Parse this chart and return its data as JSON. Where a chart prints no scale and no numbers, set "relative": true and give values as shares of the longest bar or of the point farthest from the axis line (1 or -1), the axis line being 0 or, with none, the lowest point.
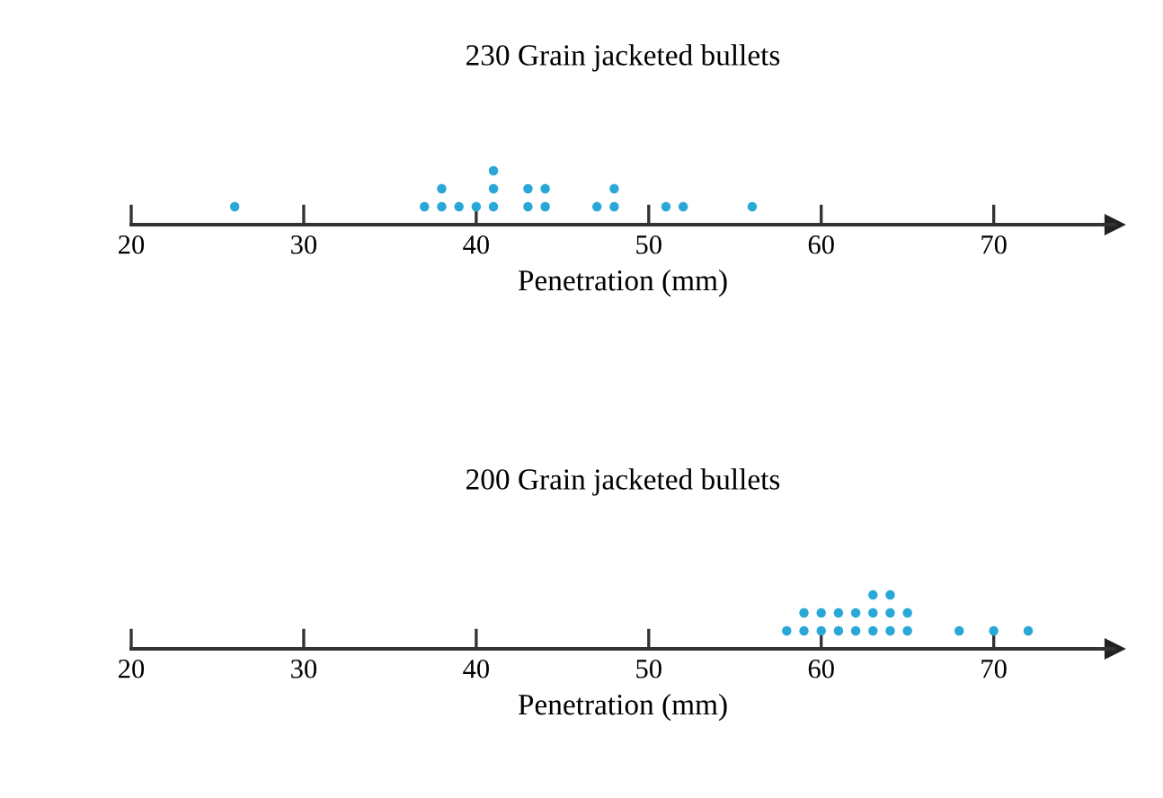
{
  "chart_data": [
    {
      "type": "scatter",
      "title": "230 Grain jacketed bullets",
      "xlabel": "Penetration (mm)",
      "relative": true,
      "marker": "circle",
      "xlim": [
        20,
        77
      ],
      "xticks": [
        20,
        30,
        40,
        50,
        60,
        70
      ],
      "series": [
        {
          "color": "#29a8d8",
          "x": [
            26,
            37,
            38,
            38,
            39,
            40,
            41,
            41,
            41,
            43,
            43,
            44,
            44,
            47,
            48,
            48,
            51,
            52,
            56
          ],
          "values": [
            0.333,
            0.333,
            0.333,
            0.667,
            0.333,
            0.333,
            0.333,
            0.667,
            1,
            0.333,
            0.667,
            0.333,
            0.667,
            0.333,
            0.333,
            0.667,
            0.333,
            0.333,
            0.333
          ]
        }
      ]
    },
    {
      "type": "scatter",
      "title": "200 Grain jacketed bullets",
      "xlabel": "Penetration (mm)",
      "relative": true,
      "marker": "circle",
      "xlim": [
        20,
        77
      ],
      "xticks": [
        20,
        30,
        40,
        50,
        60,
        70
      ],
      "series": [
        {
          "color": "#29a8d8",
          "x": [
            58,
            59,
            59,
            60,
            60,
            61,
            61,
            62,
            62,
            63,
            63,
            63,
            64,
            64,
            64,
            65,
            65,
            68,
            70,
            72
          ],
          "values": [
            0.333,
            0.333,
            0.667,
            0.333,
            0.667,
            0.333,
            0.667,
            0.333,
            0.667,
            0.333,
            0.667,
            1,
            0.333,
            0.667,
            1,
            0.333,
            0.667,
            0.333,
            0.333,
            0.333
          ]
        }
      ]
    }
  ]
}
